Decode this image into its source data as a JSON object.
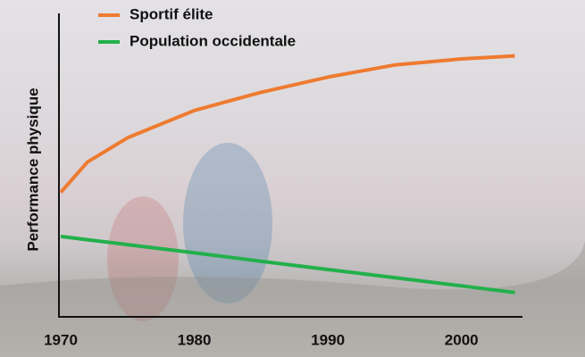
{
  "chart_data": {
    "type": "line",
    "y_label": "Performance physique",
    "x": [
      1970,
      1972,
      1975,
      1980,
      1985,
      1990,
      1995,
      2000,
      2004
    ],
    "series": [
      {
        "name": "Sportif élite",
        "color": "#ee7b30",
        "values": [
          41,
          51,
          59,
          68,
          74,
          79,
          83,
          85,
          86
        ]
      },
      {
        "name": "Population occidentale",
        "color": "#22b04b",
        "values": [
          26.5,
          25.4,
          23.8,
          21.1,
          18.3,
          15.6,
          12.9,
          10.2,
          8
        ]
      }
    ],
    "xlim": [
      1970,
      2004.5
    ],
    "xticks": [
      1970,
      1980,
      1990,
      2000
    ],
    "ylim": [
      0,
      100
    ],
    "legend": "top"
  }
}
